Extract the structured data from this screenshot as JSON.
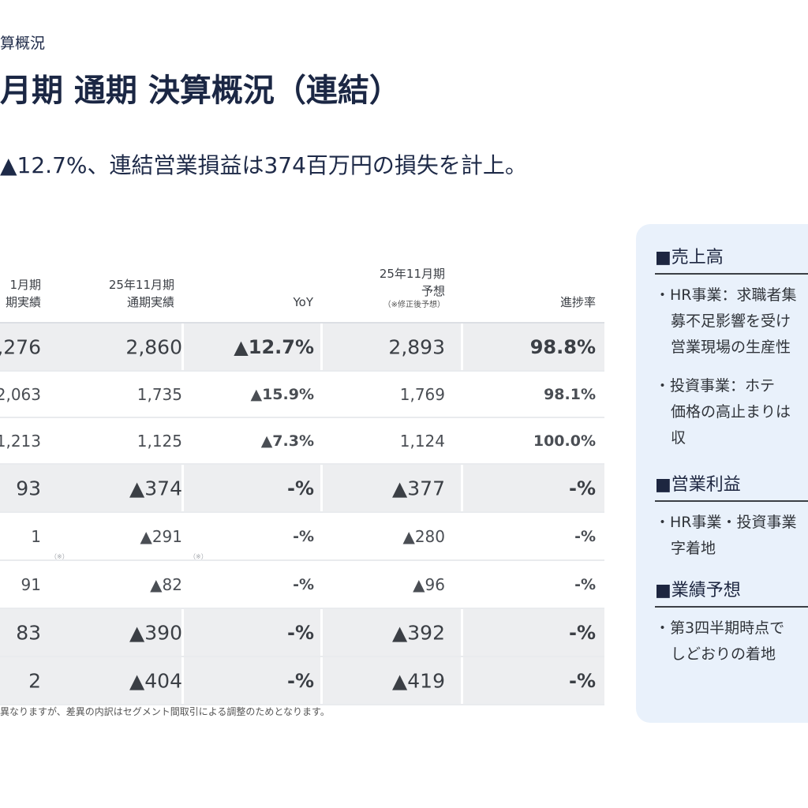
{
  "header": {
    "breadcrumb": "算概況",
    "title": "月期 通期 決算概況（連結）",
    "subtitle": "▲12.7%、連結営業損益は374百万円の損失を計上。"
  },
  "table": {
    "columns": [
      {
        "l1": "1月期",
        "l2": "期実績",
        "l3": ""
      },
      {
        "l1": "25年11月期",
        "l2": "通期実績",
        "l3": ""
      },
      {
        "l1": "",
        "l2": "YoY",
        "l3": ""
      },
      {
        "l1": "25年11月期",
        "l2": "予想",
        "l3": "（※修正後予想）"
      },
      {
        "l1": "",
        "l2": "進捗率",
        "l3": ""
      }
    ],
    "rows": [
      {
        "c0": ",276",
        "c1": "2,860",
        "c2": "▲12.7%",
        "c3": "2,893",
        "c4": "98.8%"
      },
      {
        "c0": "2,063",
        "c1": "1,735",
        "c2": "▲15.9%",
        "c3": "1,769",
        "c4": "98.1%"
      },
      {
        "c0": "1,213",
        "c1": "1,125",
        "c2": "▲7.3%",
        "c3": "1,124",
        "c4": "100.0%"
      },
      {
        "c0": "93",
        "c1": "▲374",
        "c2": "-%",
        "c3": "▲377",
        "c4": "-%"
      },
      {
        "c0": "1",
        "c1": "▲291",
        "c2": "-%",
        "c3": "▲280",
        "c4": "-%"
      },
      {
        "c0": "91",
        "c1": "▲82",
        "c2": "-%",
        "c3": "▲96",
        "c4": "-%"
      },
      {
        "c0": "83",
        "c1": "▲390",
        "c2": "-%",
        "c3": "▲392",
        "c4": "-%"
      },
      {
        "c0": "2",
        "c1": "▲404",
        "c2": "-%",
        "c3": "▲419",
        "c4": "-%"
      }
    ],
    "note_mark": "（※）",
    "footnote": "異なりますが、差異の内訳はセグメント間取引による調整のためとなります。"
  },
  "sidebar": {
    "sales": {
      "title": "■売上高",
      "hr": [
        "・HR事業：求職者集",
        "募不足影響を受け",
        "営業現場の生産性"
      ],
      "invest": [
        "・投資事業：ホテ",
        "価格の高止まりは",
        "収"
      ]
    },
    "op": {
      "title": "■営業利益",
      "lines": [
        "・HR事業・投資事業",
        "字着地"
      ]
    },
    "forecast": {
      "title": "■業績予想",
      "lines": [
        "・第3四半期時点で",
        "しどおりの着地"
      ]
    }
  }
}
